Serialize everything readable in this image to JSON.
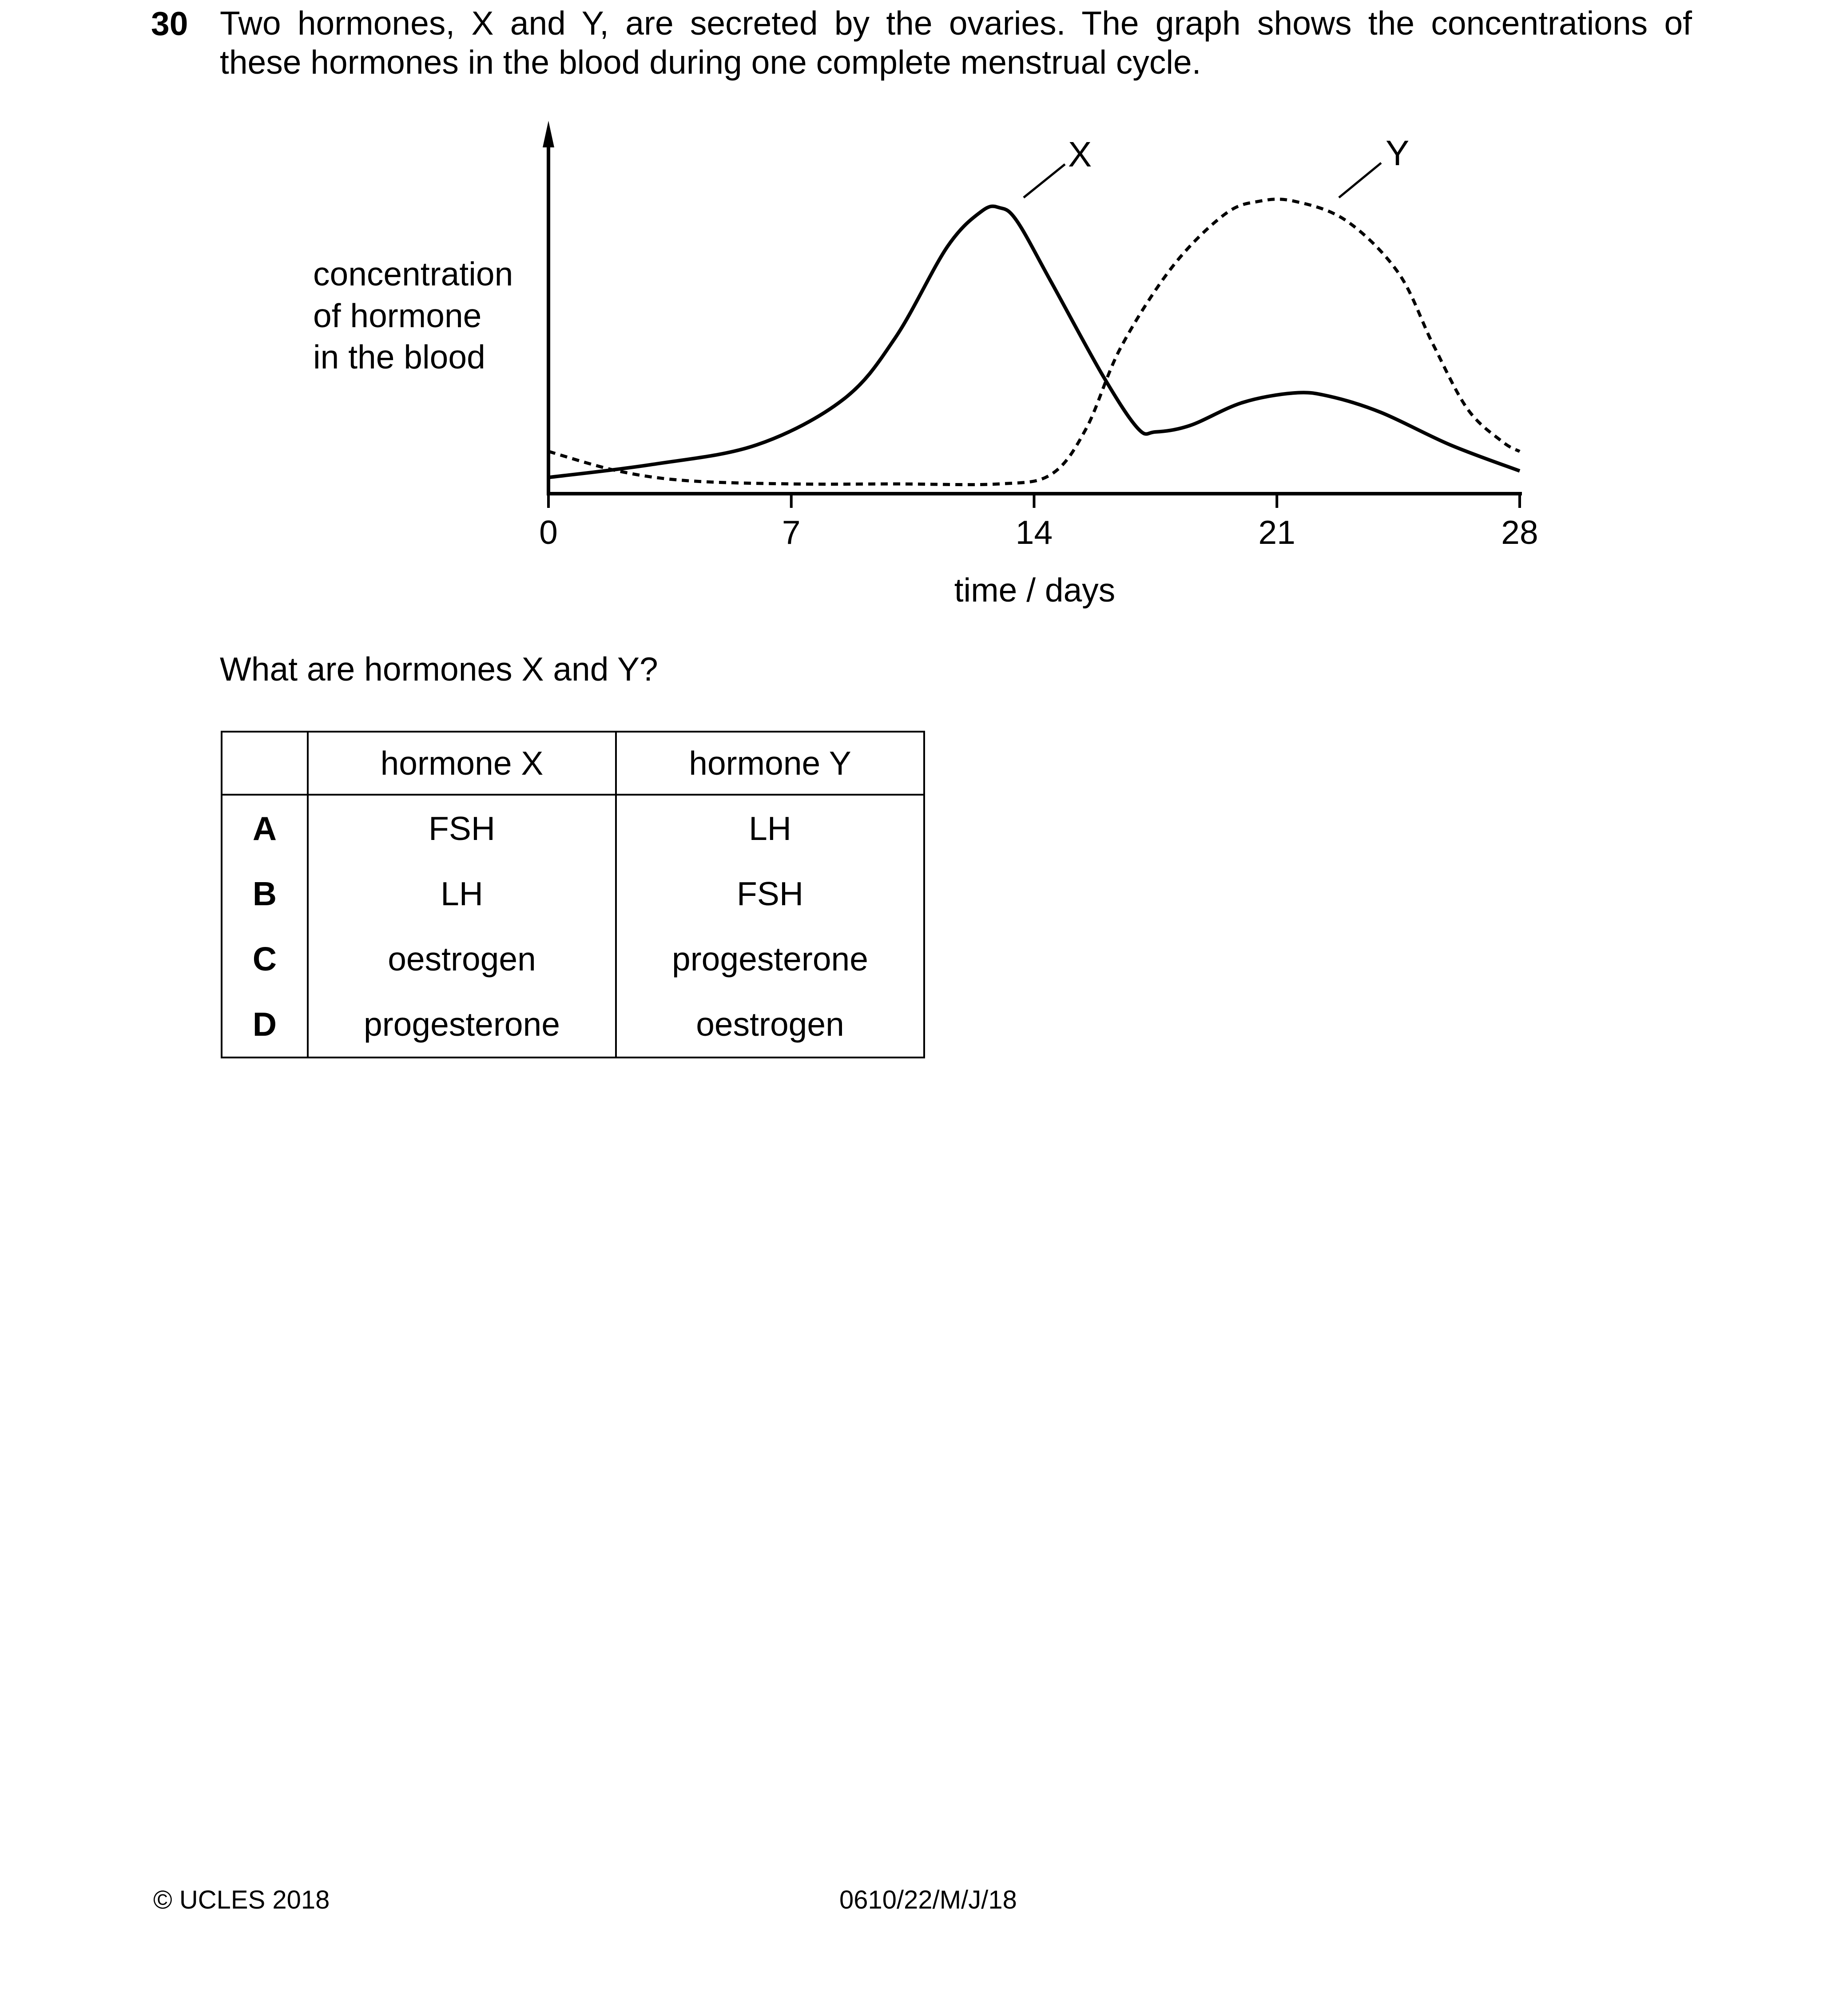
{
  "question": {
    "number": "30",
    "stem_line1": "Two hormones, X and Y, are secreted by the ovaries. The graph shows the concentrations of",
    "stem_line2": "these hormones in the blood during one complete menstrual cycle.",
    "ask": "What are hormones X and Y?"
  },
  "chart_data": {
    "type": "line",
    "xlabel": "time / days",
    "ylabel_lines": [
      "concentration",
      "of hormone",
      "in the blood"
    ],
    "xlim": [
      0,
      28
    ],
    "ylim": [
      0,
      10
    ],
    "x_ticks": [
      0,
      7,
      14,
      21,
      28
    ],
    "y_ticks": [],
    "grid": false,
    "series": [
      {
        "name": "X",
        "style": "solid",
        "points": [
          [
            0,
            0.5
          ],
          [
            3,
            0.9
          ],
          [
            6,
            1.5
          ],
          [
            8.5,
            2.9
          ],
          [
            10,
            4.8
          ],
          [
            11.5,
            7.6
          ],
          [
            12.5,
            8.7
          ],
          [
            13,
            8.8
          ],
          [
            13.5,
            8.4
          ],
          [
            14.5,
            6.5
          ],
          [
            16,
            3.6
          ],
          [
            17,
            2.0
          ],
          [
            17.5,
            1.9
          ],
          [
            18.5,
            2.1
          ],
          [
            20,
            2.8
          ],
          [
            21.5,
            3.1
          ],
          [
            22.5,
            3.0
          ],
          [
            24,
            2.5
          ],
          [
            26,
            1.5
          ],
          [
            28,
            0.7
          ]
        ]
      },
      {
        "name": "Y",
        "style": "dashed",
        "points": [
          [
            0,
            1.3
          ],
          [
            2,
            0.7
          ],
          [
            4,
            0.4
          ],
          [
            7,
            0.3
          ],
          [
            10,
            0.3
          ],
          [
            13,
            0.3
          ],
          [
            14.5,
            0.6
          ],
          [
            15.5,
            2.0
          ],
          [
            16.5,
            4.5
          ],
          [
            18,
            7.0
          ],
          [
            19.5,
            8.6
          ],
          [
            20.5,
            9.0
          ],
          [
            21.5,
            9.0
          ],
          [
            23,
            8.4
          ],
          [
            24.5,
            6.8
          ],
          [
            25.5,
            4.6
          ],
          [
            26.5,
            2.6
          ],
          [
            27.5,
            1.6
          ],
          [
            28,
            1.3
          ]
        ]
      }
    ]
  },
  "table": {
    "headers": [
      "",
      "hormone X",
      "hormone Y"
    ],
    "rows": [
      {
        "key": "A",
        "x": "FSH",
        "y": "LH"
      },
      {
        "key": "B",
        "x": "LH",
        "y": "FSH"
      },
      {
        "key": "C",
        "x": "oestrogen",
        "y": "progesterone"
      },
      {
        "key": "D",
        "x": "progesterone",
        "y": "oestrogen"
      }
    ]
  },
  "footer": {
    "copyright": "© UCLES 2018",
    "code": "0610/22/M/J/18"
  }
}
